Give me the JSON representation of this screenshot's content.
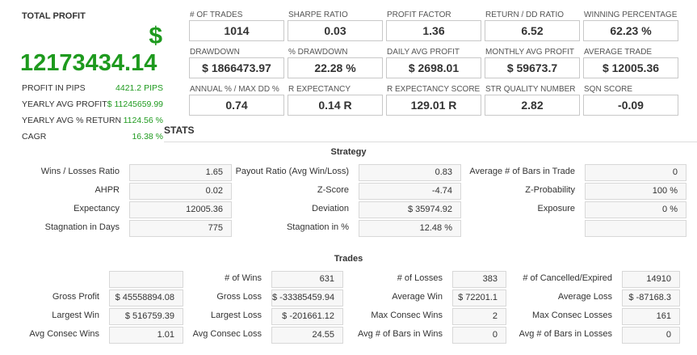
{
  "summary": {
    "title": "TOTAL PROFIT",
    "currency": "$",
    "total": "12173434.14",
    "rows": [
      [
        "PROFIT IN PIPS",
        "4421.2 PIPS"
      ],
      [
        "YEARLY AVG PROFIT",
        "$ 11245659.99"
      ],
      [
        "YEARLY AVG % RETURN",
        "1124.56 %"
      ],
      [
        "CAGR",
        "16.38 %"
      ]
    ]
  },
  "metrics": [
    [
      "# OF TRADES",
      "1014"
    ],
    [
      "SHARPE RATIO",
      "0.03"
    ],
    [
      "PROFIT FACTOR",
      "1.36"
    ],
    [
      "RETURN / DD RATIO",
      "6.52"
    ],
    [
      "WINNING PERCENTAGE",
      "62.23 %"
    ],
    [
      "DRAWDOWN",
      "$ 1866473.97"
    ],
    [
      "% DRAWDOWN",
      "22.28 %"
    ],
    [
      "DAILY AVG PROFIT",
      "$ 2698.01"
    ],
    [
      "MONTHLY AVG PROFIT",
      "$ 59673.7"
    ],
    [
      "AVERAGE TRADE",
      "$ 12005.36"
    ],
    [
      "ANNUAL % / MAX DD %",
      "0.74"
    ],
    [
      "R EXPECTANCY",
      "0.14 R"
    ],
    [
      "R EXPECTANCY SCORE",
      "129.01 R"
    ],
    [
      "STR QUALITY NUMBER",
      "2.82"
    ],
    [
      "SQN SCORE",
      "-0.09"
    ]
  ],
  "stats_title": "STATS",
  "strategy": {
    "title": "Strategy",
    "rows": [
      [
        [
          "Wins / Losses Ratio",
          "1.65"
        ],
        [
          "Payout Ratio (Avg Win/Loss)",
          "0.83"
        ],
        [
          "Average # of Bars in Trade",
          "0"
        ]
      ],
      [
        [
          "AHPR",
          "0.02"
        ],
        [
          "Z-Score",
          "-4.74"
        ],
        [
          "Z-Probability",
          "100 %"
        ]
      ],
      [
        [
          "Expectancy",
          "12005.36"
        ],
        [
          "Deviation",
          "$ 35974.92"
        ],
        [
          "Exposure",
          "0 %"
        ]
      ],
      [
        [
          "Stagnation in Days",
          "775"
        ],
        [
          "Stagnation in %",
          "12.48 %"
        ],
        null
      ]
    ]
  },
  "trades": {
    "title": "Trades",
    "rows": [
      [
        null,
        [
          "# of Wins",
          "631"
        ],
        [
          "# of Losses",
          "383"
        ],
        [
          "# of Cancelled/Expired",
          "14910"
        ]
      ],
      [
        [
          "Gross Profit",
          "$ 45558894.08"
        ],
        [
          "Gross Loss",
          "$ -33385459.94"
        ],
        [
          "Average Win",
          "$ 72201.1"
        ],
        [
          "Average Loss",
          "$ -87168.3"
        ]
      ],
      [
        [
          "Largest Win",
          "$ 516759.39"
        ],
        [
          "Largest Loss",
          "$ -201661.12"
        ],
        [
          "Max Consec Wins",
          "2"
        ],
        [
          "Max Consec Losses",
          "161"
        ]
      ],
      [
        [
          "Avg Consec Wins",
          "1.01"
        ],
        [
          "Avg Consec Loss",
          "24.55"
        ],
        [
          "Avg # of Bars in Wins",
          "0"
        ],
        [
          "Avg # of Bars in Losses",
          "0"
        ]
      ]
    ]
  }
}
